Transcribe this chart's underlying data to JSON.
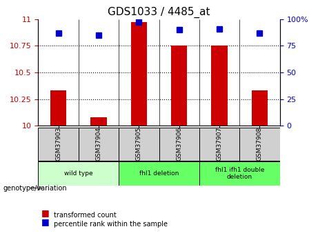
{
  "title": "GDS1033 / 4485_at",
  "samples": [
    "GSM37903",
    "GSM37904",
    "GSM37905",
    "GSM37906",
    "GSM37907",
    "GSM37908"
  ],
  "transformed_counts": [
    10.33,
    10.08,
    10.97,
    10.75,
    10.75,
    10.33
  ],
  "percentile_ranks": [
    87,
    85,
    97,
    90,
    91,
    87
  ],
  "ylim_left": [
    10,
    11
  ],
  "ylim_right": [
    0,
    100
  ],
  "yticks_left": [
    10,
    10.25,
    10.5,
    10.75,
    11
  ],
  "yticks_right": [
    0,
    25,
    50,
    75,
    100
  ],
  "bar_color": "#cc0000",
  "dot_color": "#0000cc",
  "grid_color": "#000000",
  "groups": [
    {
      "label": "wild type",
      "samples": [
        0,
        1
      ],
      "color": "#ccffcc"
    },
    {
      "label": "fhl1 deletion",
      "samples": [
        2,
        3
      ],
      "color": "#66ff66"
    },
    {
      "label": "fhl1 ifh1 double\ndeletion",
      "samples": [
        4,
        5
      ],
      "color": "#66ff66"
    }
  ],
  "xlabel_genotype": "genotype/variation",
  "legend_red": "transformed count",
  "legend_blue": "percentile rank within the sample",
  "tick_label_color_left": "#cc0000",
  "tick_label_color_right": "#0000cc",
  "bar_width": 0.4,
  "dot_size": 6
}
